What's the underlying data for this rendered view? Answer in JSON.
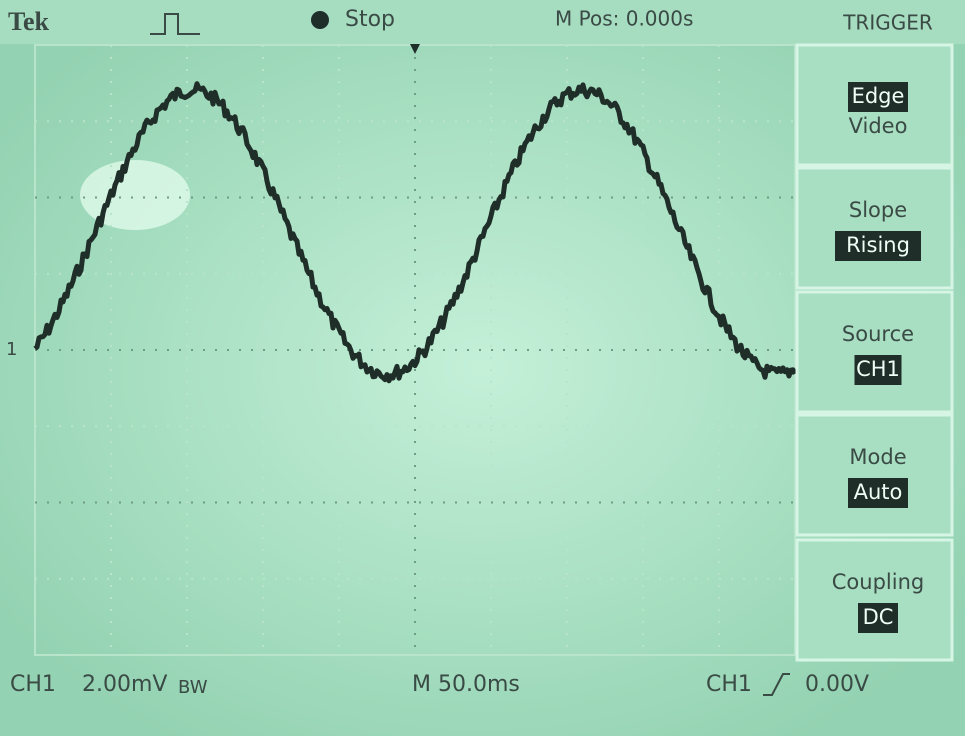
{
  "header": {
    "brand": "Tek",
    "status": "Stop",
    "position": "M Pos: 0.000s",
    "menu_title": "TRIGGER"
  },
  "menu": [
    {
      "label": "Edge",
      "option": "Video"
    },
    {
      "label": "Slope",
      "option": "Rising"
    },
    {
      "label": "Source",
      "option": "CH1"
    },
    {
      "label": "Mode",
      "option": "Auto"
    },
    {
      "label": "Coupling",
      "option": "DC"
    }
  ],
  "channel_marker": "1",
  "footer": {
    "channel": "CH1",
    "scale": "2.00mV",
    "bandwidth": "BW",
    "timebase": "M 50.0ms",
    "trigger_channel": "CH1",
    "trigger_level": "0.00V"
  }
}
